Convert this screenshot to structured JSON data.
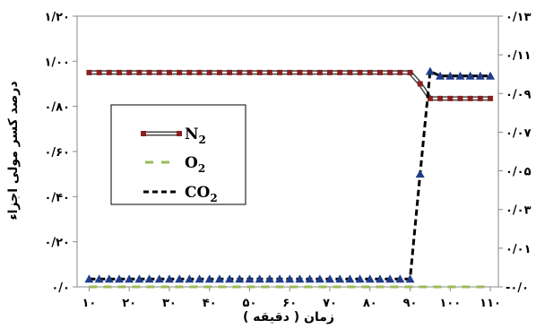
{
  "chart_data": {
    "type": "line",
    "xlabel": "زمان ( دقیقه )",
    "ylabel": "درصد کسر مولی اجزاء",
    "x": [
      10,
      12.5,
      15,
      17.5,
      20,
      22.5,
      25,
      27.5,
      30,
      32.5,
      35,
      37.5,
      40,
      42.5,
      45,
      47.5,
      50,
      52.5,
      55,
      57.5,
      60,
      62.5,
      65,
      67.5,
      70,
      72.5,
      75,
      77.5,
      80,
      82.5,
      85,
      87.5,
      90,
      92.5,
      95,
      97.5,
      100,
      102.5,
      105,
      107.5,
      110
    ],
    "xlim": [
      7,
      112
    ],
    "ylim_left": [
      0,
      1.2
    ],
    "ylim_right": [
      -0.01,
      0.13
    ],
    "x_ticks": [
      {
        "value": 10,
        "label": "۱۰"
      },
      {
        "value": 20,
        "label": "۲۰"
      },
      {
        "value": 30,
        "label": "۳۰"
      },
      {
        "value": 40,
        "label": "۴۰"
      },
      {
        "value": 50,
        "label": "۵۰"
      },
      {
        "value": 60,
        "label": "۶۰"
      },
      {
        "value": 70,
        "label": "۷۰"
      },
      {
        "value": 80,
        "label": "۸۰"
      },
      {
        "value": 90,
        "label": "۹۰"
      },
      {
        "value": 100,
        "label": "۱۰۰"
      },
      {
        "value": 110,
        "label": "۱۱۰"
      }
    ],
    "y_left_ticks": [
      {
        "value": 0,
        "label": "۰/۰"
      },
      {
        "value": 0.2,
        "label": "۰/۲۰"
      },
      {
        "value": 0.4,
        "label": "۰/۴۰"
      },
      {
        "value": 0.6,
        "label": "۰/۶۰"
      },
      {
        "value": 0.8,
        "label": "۰/۸۰"
      },
      {
        "value": 1.0,
        "label": "۱/۰۰"
      },
      {
        "value": 1.2,
        "label": "۱/۲۰"
      }
    ],
    "y_right_ticks": [
      {
        "value": -0.01,
        "label": "-۰/۰"
      },
      {
        "value": 0.01,
        "label": "۰/۰۱"
      },
      {
        "value": 0.03,
        "label": "۰/۰۳"
      },
      {
        "value": 0.05,
        "label": "۰/۰۵"
      },
      {
        "value": 0.07,
        "label": "۰/۰۷"
      },
      {
        "value": 0.09,
        "label": "۰/۰۹"
      },
      {
        "value": 0.11,
        "label": "۰/۱۱"
      },
      {
        "value": 0.13,
        "label": "۰/۱۳"
      }
    ],
    "series": [
      {
        "name": "N2",
        "axis": "left",
        "color": "#8b2020",
        "style": "double-line-square",
        "values": [
          0.95,
          0.95,
          0.95,
          0.95,
          0.95,
          0.95,
          0.95,
          0.95,
          0.95,
          0.95,
          0.95,
          0.95,
          0.95,
          0.95,
          0.95,
          0.95,
          0.95,
          0.95,
          0.95,
          0.95,
          0.95,
          0.95,
          0.95,
          0.95,
          0.95,
          0.95,
          0.95,
          0.95,
          0.95,
          0.95,
          0.95,
          0.95,
          0.95,
          0.9,
          0.835,
          0.835,
          0.835,
          0.835,
          0.835,
          0.835,
          0.835
        ]
      },
      {
        "name": "O2",
        "axis": "left",
        "color": "#9bbb59",
        "style": "dash",
        "values": [
          0,
          0,
          0,
          0,
          0,
          0,
          0,
          0,
          0,
          0,
          0,
          0,
          0,
          0,
          0,
          0,
          0,
          0,
          0,
          0,
          0,
          0,
          0,
          0,
          0,
          0,
          0,
          0,
          0,
          0,
          0,
          0,
          0,
          0,
          0,
          0,
          0,
          0,
          0,
          0,
          0
        ]
      },
      {
        "name": "CO2",
        "axis": "left",
        "color": "#1f3c88",
        "style": "dash-triangle",
        "values": [
          0.035,
          0.035,
          0.035,
          0.035,
          0.035,
          0.035,
          0.035,
          0.035,
          0.035,
          0.035,
          0.035,
          0.035,
          0.035,
          0.035,
          0.035,
          0.035,
          0.035,
          0.035,
          0.035,
          0.035,
          0.035,
          0.035,
          0.035,
          0.035,
          0.035,
          0.035,
          0.035,
          0.035,
          0.035,
          0.035,
          0.035,
          0.035,
          0.035,
          0.5,
          0.955,
          0.935,
          0.935,
          0.935,
          0.935,
          0.935,
          0.935
        ]
      }
    ],
    "legend": {
      "placement": "left-center",
      "entries": [
        {
          "label": "N",
          "sub": "2"
        },
        {
          "label": "O",
          "sub": "2"
        },
        {
          "label": "CO",
          "sub": "2"
        }
      ]
    }
  }
}
